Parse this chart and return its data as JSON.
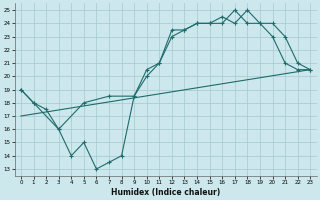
{
  "xlabel": "Humidex (Indice chaleur)",
  "bg_color": "#cce8ec",
  "grid_color": "#aacdd4",
  "line_color": "#1e6b6b",
  "xlim": [
    -0.5,
    23.5
  ],
  "ylim": [
    12.5,
    25.5
  ],
  "xticks": [
    0,
    1,
    2,
    3,
    4,
    5,
    6,
    7,
    8,
    9,
    10,
    11,
    12,
    13,
    14,
    15,
    16,
    17,
    18,
    19,
    20,
    21,
    22,
    23
  ],
  "yticks": [
    13,
    14,
    15,
    16,
    17,
    18,
    19,
    20,
    21,
    22,
    23,
    24,
    25
  ],
  "line1_x": [
    0,
    1,
    2,
    3,
    4,
    5,
    6,
    7,
    8,
    9,
    10,
    11,
    12,
    13,
    14,
    15,
    16,
    17,
    18,
    19,
    20,
    21,
    22,
    23
  ],
  "line1_y": [
    19,
    18,
    17.5,
    16,
    14,
    15,
    13,
    13.5,
    14,
    18.5,
    20,
    21,
    23.5,
    23.5,
    24,
    24,
    24,
    25,
    24,
    24,
    23,
    21,
    20.5,
    20.5
  ],
  "line2_x": [
    0,
    1,
    3,
    5,
    7,
    9,
    10,
    11,
    12,
    13,
    14,
    15,
    16,
    17,
    18,
    19,
    20,
    21,
    22,
    23
  ],
  "line2_y": [
    19,
    18,
    16,
    18,
    18.5,
    18.5,
    20.5,
    21,
    23,
    23.5,
    24,
    24,
    24.5,
    24,
    25,
    24,
    24,
    23,
    21,
    20.5
  ],
  "line3_x": [
    0,
    23
  ],
  "line3_y": [
    17,
    20.5
  ]
}
